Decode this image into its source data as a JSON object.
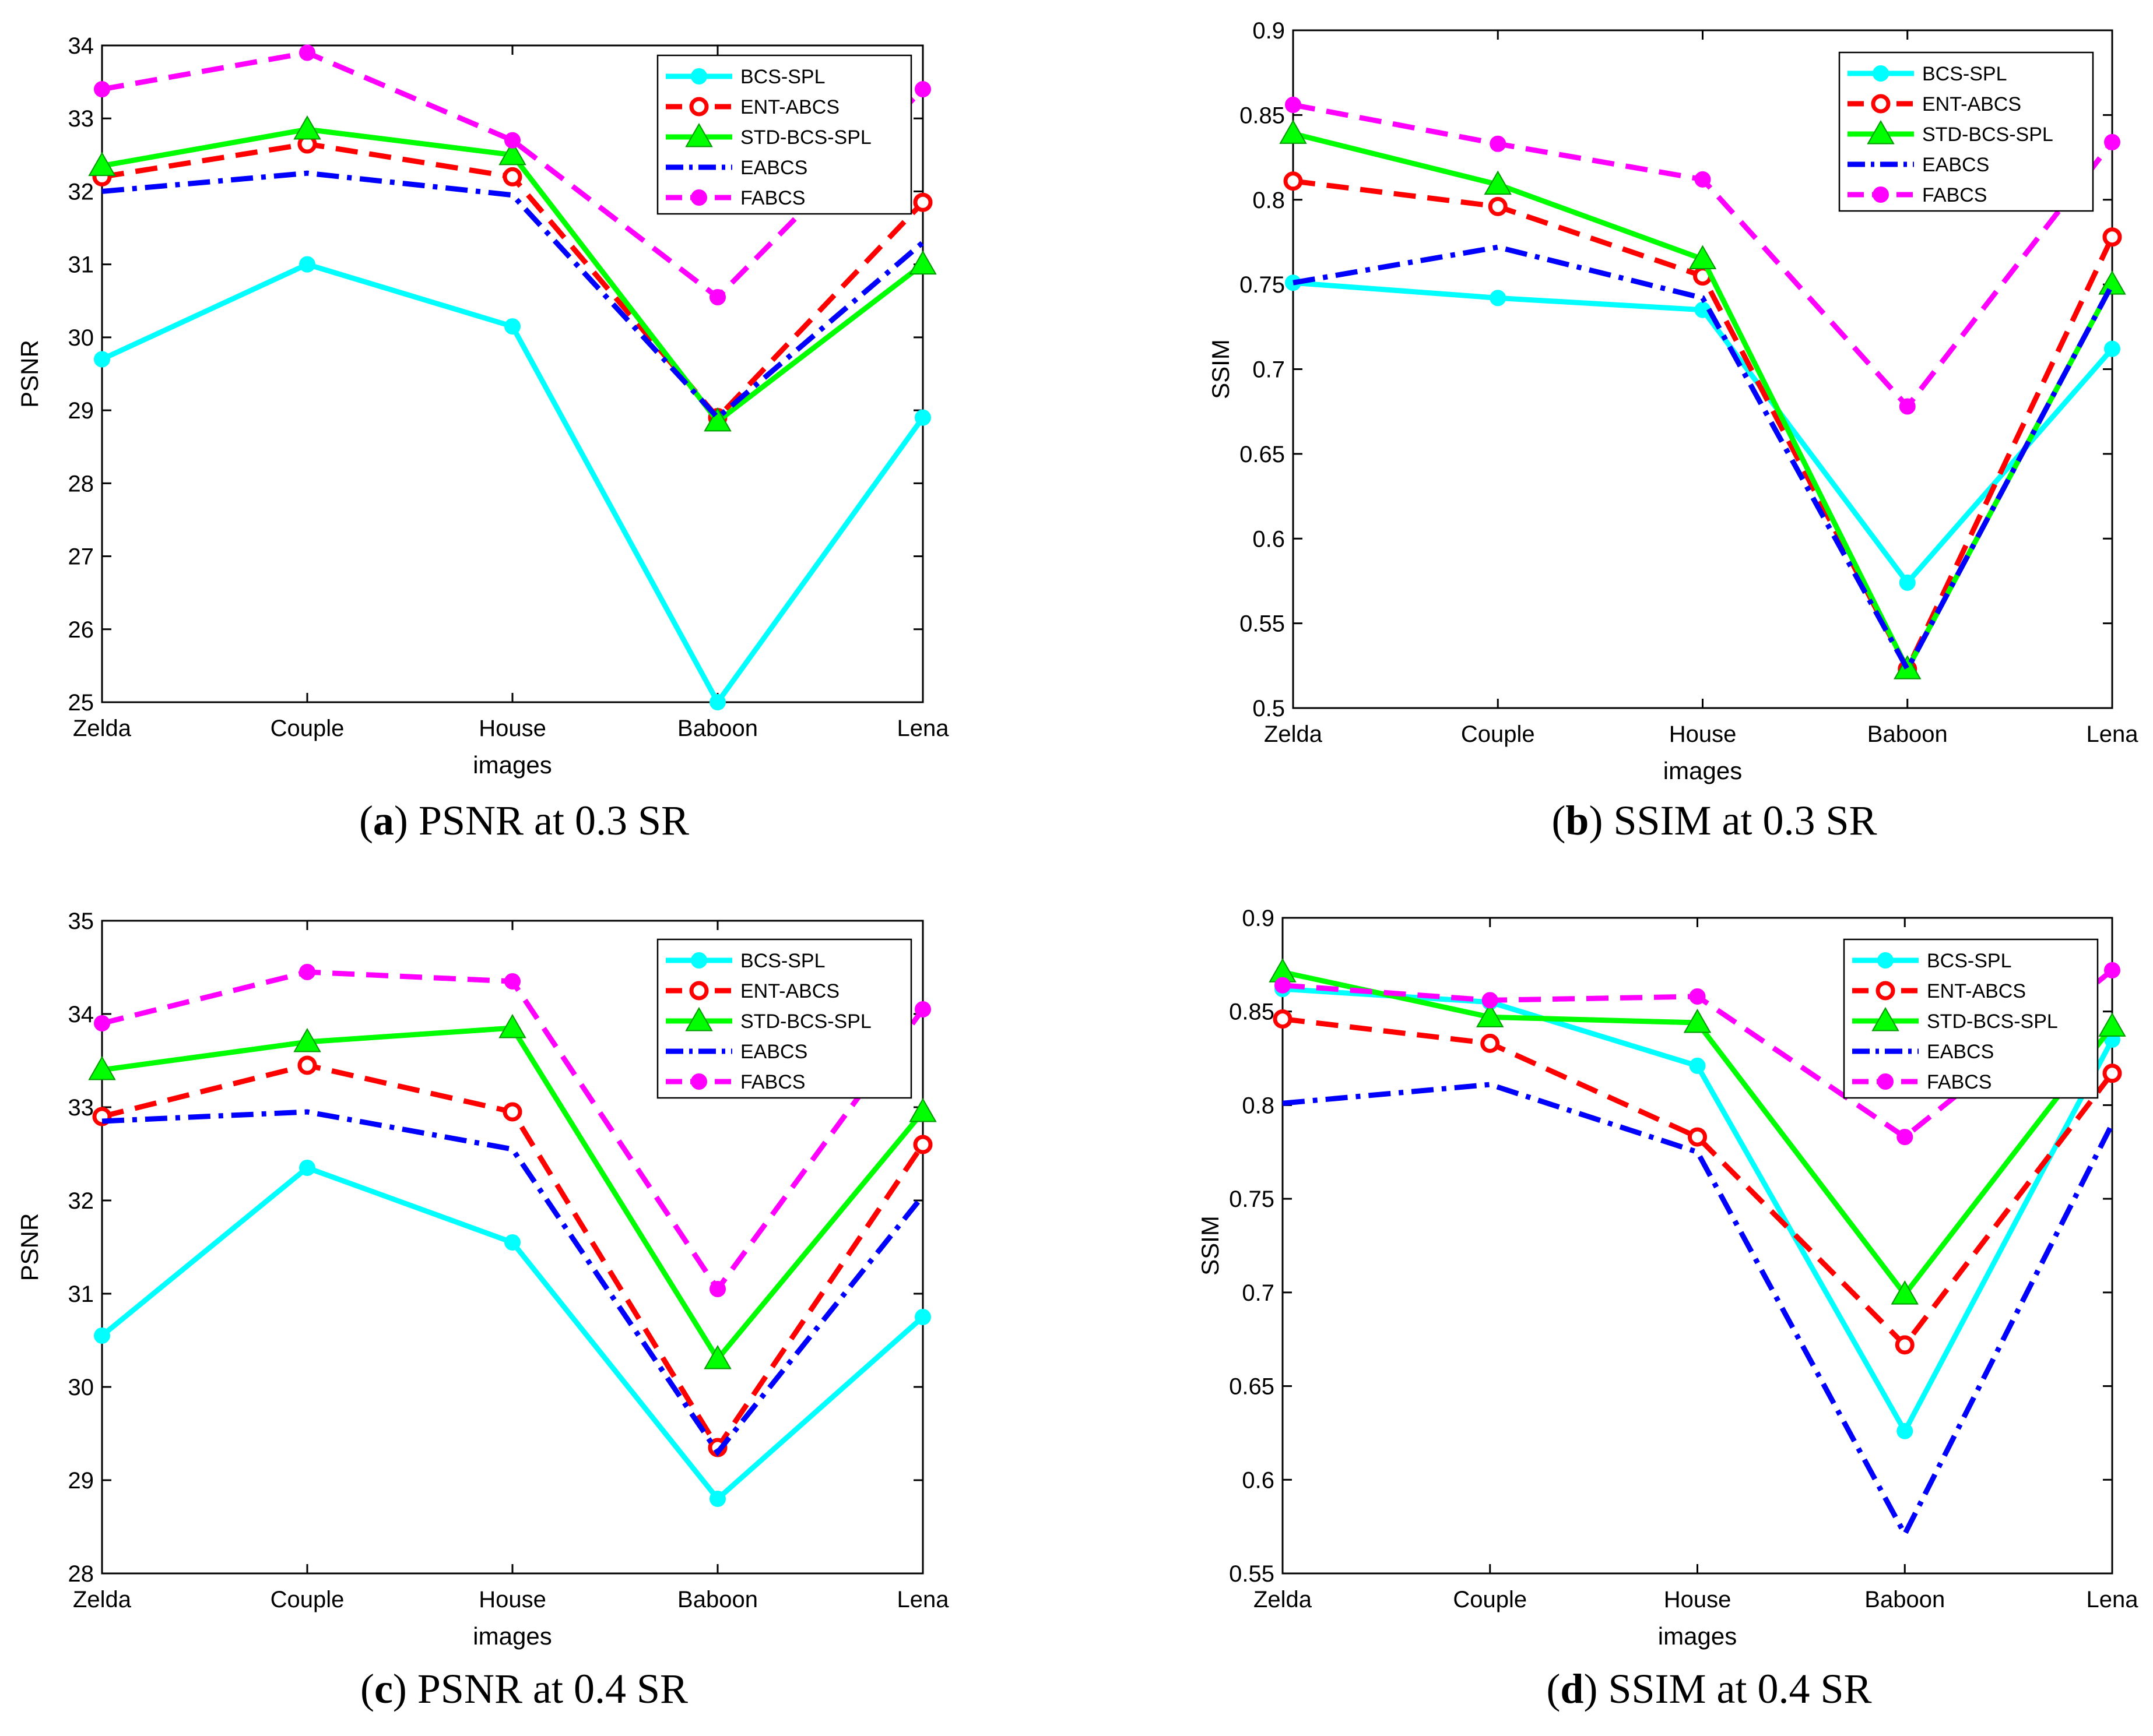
{
  "series_styles": [
    {
      "name": "BCS-SPL",
      "color": "#00FFFF",
      "dash": "solid",
      "marker": "dot"
    },
    {
      "name": "ENT-ABCS",
      "color": "#FF0000",
      "dash": "dashed",
      "marker": "circle"
    },
    {
      "name": "STD-BCS-SPL",
      "color": "#00FF00",
      "dash": "solid",
      "marker": "triangle"
    },
    {
      "name": "EABCS",
      "color": "#0000FF",
      "dash": "dashdot",
      "marker": "none"
    },
    {
      "name": "FABCS",
      "color": "#FF00FF",
      "dash": "dashed",
      "marker": "dot"
    }
  ],
  "chart_data": [
    {
      "type": "line",
      "panel_letter": "a",
      "caption": "PSNR at 0.3 SR",
      "title": "",
      "xlabel": "images",
      "ylabel": "PSNR",
      "categories": [
        "Zelda",
        "Couple",
        "House",
        "Baboon",
        "Lena"
      ],
      "ylim": [
        25,
        34
      ],
      "yticks": [
        25,
        26,
        27,
        28,
        29,
        30,
        31,
        32,
        33,
        34
      ],
      "ytick_labels": [
        "25",
        "26",
        "27",
        "28",
        "29",
        "30",
        "31",
        "32",
        "33",
        "34"
      ],
      "legend_position": "top-right",
      "grid": false,
      "series": [
        {
          "name": "BCS-SPL",
          "values": [
            29.7,
            31.0,
            30.15,
            25.0,
            28.9
          ]
        },
        {
          "name": "ENT-ABCS",
          "values": [
            32.2,
            32.65,
            32.2,
            28.9,
            31.85
          ]
        },
        {
          "name": "STD-BCS-SPL",
          "values": [
            32.35,
            32.85,
            32.5,
            28.85,
            31.0
          ]
        },
        {
          "name": "EABCS",
          "values": [
            32.0,
            32.25,
            31.95,
            28.9,
            31.3
          ]
        },
        {
          "name": "FABCS",
          "values": [
            33.4,
            33.9,
            32.7,
            30.55,
            33.4
          ]
        }
      ]
    },
    {
      "type": "line",
      "panel_letter": "b",
      "caption": "SSIM at 0.3 SR",
      "title": "",
      "xlabel": "images",
      "ylabel": "SSIM",
      "categories": [
        "Zelda",
        "Couple",
        "House",
        "Baboon",
        "Lena"
      ],
      "ylim": [
        0.5,
        0.9
      ],
      "yticks": [
        0.5,
        0.55,
        0.6,
        0.65,
        0.7,
        0.75,
        0.8,
        0.85,
        0.9
      ],
      "ytick_labels": [
        "0.5",
        "0.55",
        "0.6",
        "0.65",
        "0.7",
        "0.75",
        "0.8",
        "0.85",
        "0.9"
      ],
      "legend_position": "top-right",
      "grid": false,
      "series": [
        {
          "name": "BCS-SPL",
          "values": [
            0.751,
            0.742,
            0.735,
            0.574,
            0.712
          ]
        },
        {
          "name": "ENT-ABCS",
          "values": [
            0.811,
            0.796,
            0.755,
            0.523,
            0.778
          ]
        },
        {
          "name": "STD-BCS-SPL",
          "values": [
            0.839,
            0.809,
            0.765,
            0.523,
            0.75
          ]
        },
        {
          "name": "EABCS",
          "values": [
            0.751,
            0.772,
            0.742,
            0.523,
            0.75
          ]
        },
        {
          "name": "FABCS",
          "values": [
            0.856,
            0.833,
            0.812,
            0.678,
            0.834
          ]
        }
      ]
    },
    {
      "type": "line",
      "panel_letter": "c",
      "caption": "PSNR at 0.4 SR",
      "title": "",
      "xlabel": "images",
      "ylabel": "PSNR",
      "categories": [
        "Zelda",
        "Couple",
        "House",
        "Baboon",
        "Lena"
      ],
      "ylim": [
        28,
        35
      ],
      "yticks": [
        28,
        29,
        30,
        31,
        32,
        33,
        34,
        35
      ],
      "ytick_labels": [
        "28",
        "29",
        "30",
        "31",
        "32",
        "33",
        "34",
        "35"
      ],
      "legend_position": "top-right",
      "grid": false,
      "series": [
        {
          "name": "BCS-SPL",
          "values": [
            30.55,
            32.35,
            31.55,
            28.8,
            30.75
          ]
        },
        {
          "name": "ENT-ABCS",
          "values": [
            32.9,
            33.45,
            32.95,
            29.35,
            32.6
          ]
        },
        {
          "name": "STD-BCS-SPL",
          "values": [
            33.4,
            33.7,
            33.85,
            30.3,
            32.95
          ]
        },
        {
          "name": "EABCS",
          "values": [
            32.85,
            32.95,
            32.55,
            29.3,
            32.05
          ]
        },
        {
          "name": "FABCS",
          "values": [
            33.9,
            34.45,
            34.35,
            31.05,
            34.05
          ]
        }
      ]
    },
    {
      "type": "line",
      "panel_letter": "d",
      "caption": "SSIM at 0.4 SR",
      "title": "",
      "xlabel": "images",
      "ylabel": "SSIM",
      "categories": [
        "Zelda",
        "Couple",
        "House",
        "Baboon",
        "Lena"
      ],
      "ylim": [
        0.55,
        0.9
      ],
      "yticks": [
        0.55,
        0.6,
        0.65,
        0.7,
        0.75,
        0.8,
        0.85,
        0.9
      ],
      "ytick_labels": [
        "0.55",
        "0.6",
        "0.65",
        "0.7",
        "0.75",
        "0.8",
        "0.85",
        "0.9"
      ],
      "legend_position": "top-right",
      "grid": false,
      "series": [
        {
          "name": "BCS-SPL",
          "values": [
            0.862,
            0.855,
            0.821,
            0.626,
            0.835
          ]
        },
        {
          "name": "ENT-ABCS",
          "values": [
            0.846,
            0.833,
            0.783,
            0.672,
            0.817
          ]
        },
        {
          "name": "STD-BCS-SPL",
          "values": [
            0.871,
            0.847,
            0.844,
            0.699,
            0.842
          ]
        },
        {
          "name": "EABCS",
          "values": [
            0.801,
            0.811,
            0.775,
            0.571,
            0.79
          ]
        },
        {
          "name": "FABCS",
          "values": [
            0.864,
            0.856,
            0.858,
            0.783,
            0.872
          ]
        }
      ]
    }
  ]
}
